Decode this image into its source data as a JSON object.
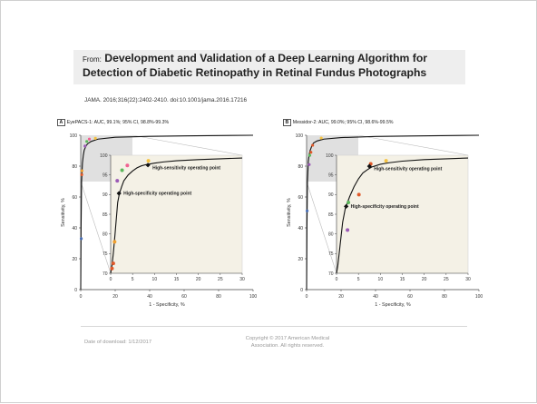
{
  "header": {
    "from_label": "From:",
    "title": "Development and Validation of a Deep Learning Algorithm for Detection of Diabetic Retinopathy in Retinal Fundus Photographs",
    "citation": "JAMA. 2016;316(22):2402-2410. doi:10.1001/jama.2016.17216"
  },
  "footer": {
    "date": "Date of download:  1/12/2017",
    "copyright": "Copyright © 2017 American Medical Association. All rights reserved."
  },
  "colors": {
    "curve": "#111111",
    "inset_bg": "#f4f1e6",
    "zoom_region": "#e0e0e0",
    "axis": "#444444"
  },
  "chart_data": [
    {
      "type": "line",
      "panel": "A",
      "title": "EyePACS-1: AUC, 99.1%; 95% CI, 98.8%-99.3%",
      "xlabel": "1 - Specificity, %",
      "ylabel": "Sensitivity, %",
      "xlim": [
        0,
        100
      ],
      "ylim": [
        0,
        100
      ],
      "x_ticks": [
        "0",
        "20",
        "40",
        "60",
        "80",
        "100"
      ],
      "y_ticks": [
        "0",
        "20",
        "40",
        "60",
        "80",
        "100"
      ],
      "curve": {
        "x": [
          0,
          0.2,
          0.5,
          1,
          1.5,
          2,
          3,
          4,
          6,
          10,
          20,
          40,
          60,
          100
        ],
        "y": [
          0,
          40,
          70,
          82,
          87,
          90.3,
          93,
          94.5,
          96,
          97.5,
          98.7,
          99.3,
          99.6,
          100
        ]
      },
      "points": [
        {
          "x": 0.3,
          "y": 33,
          "color": "#4a6fb5"
        },
        {
          "x": 0.6,
          "y": 74.5,
          "color": "#e05a2b"
        },
        {
          "x": 0.7,
          "y": 77,
          "color": "#f0a030"
        },
        {
          "x": 2.5,
          "y": 93,
          "color": "#9b59b6"
        },
        {
          "x": 3.5,
          "y": 96,
          "color": "#5cb85c"
        },
        {
          "x": 5,
          "y": 97.5,
          "color": "#f06292"
        },
        {
          "x": 8.5,
          "y": 98,
          "color": "#f5c242"
        }
      ],
      "inset": {
        "xlim": [
          0,
          30
        ],
        "ylim": [
          70,
          100
        ],
        "x_ticks": [
          "0",
          "5",
          "10",
          "15",
          "20",
          "25",
          "30"
        ],
        "y_ticks": [
          "70",
          "75",
          "80",
          "85",
          "90",
          "95",
          "100"
        ],
        "curve": {
          "x": [
            0,
            0.3,
            0.6,
            1,
            1.3,
            1.6,
            2,
            2.5,
            3,
            4,
            5,
            6,
            7,
            8,
            10,
            12,
            15,
            20,
            25,
            30
          ],
          "y": [
            70,
            72,
            75,
            80,
            84,
            88,
            90.3,
            92,
            93.5,
            95,
            96,
            96.8,
            97.3,
            97.6,
            98,
            98.3,
            98.6,
            98.9,
            99.1,
            99.3
          ]
        },
        "operating_points": [
          {
            "x": 8.5,
            "y": 97.5,
            "label": "High-sensitivity operating point"
          },
          {
            "x": 1.9,
            "y": 90.3,
            "label": "High-specificity operating point"
          }
        ],
        "points": [
          {
            "x": 0.3,
            "y": 71.2,
            "color": "#e05a2b"
          },
          {
            "x": 0.6,
            "y": 72.5,
            "color": "#e05a2b"
          },
          {
            "x": 0.9,
            "y": 78,
            "color": "#f0a030"
          },
          {
            "x": 1.5,
            "y": 93.5,
            "color": "#9b59b6"
          },
          {
            "x": 2.6,
            "y": 96.2,
            "color": "#5cb85c"
          },
          {
            "x": 3.8,
            "y": 97.4,
            "color": "#f06292"
          },
          {
            "x": 8.6,
            "y": 98.6,
            "color": "#f5c242"
          }
        ]
      }
    },
    {
      "type": "line",
      "panel": "B",
      "title": "Messidor-2: AUC, 99.0%; 95% CI, 98.6%-99.5%",
      "xlabel": "1 - Specificity, %",
      "ylabel": "Sensitivity, %",
      "xlim": [
        0,
        100
      ],
      "ylim": [
        0,
        100
      ],
      "x_ticks": [
        "0",
        "20",
        "40",
        "60",
        "80",
        "100"
      ],
      "y_ticks": [
        "0",
        "20",
        "40",
        "60",
        "80",
        "100"
      ],
      "curve": {
        "x": [
          0,
          0.2,
          0.5,
          1,
          1.5,
          2,
          3,
          4,
          6,
          10,
          20,
          40,
          60,
          100
        ],
        "y": [
          0,
          40,
          70,
          83,
          87.5,
          90,
          93,
          95,
          96.3,
          97.5,
          98.5,
          99.2,
          99.5,
          100
        ]
      },
      "points": [
        {
          "x": 0.3,
          "y": 51,
          "color": "#4a6fb5"
        },
        {
          "x": 1.5,
          "y": 81,
          "color": "#9b59b6"
        },
        {
          "x": 1.8,
          "y": 87,
          "color": "#5cb85c"
        },
        {
          "x": 2.5,
          "y": 89,
          "color": "#e05a2b"
        },
        {
          "x": 3.5,
          "y": 93.5,
          "color": "#e05a2b"
        },
        {
          "x": 8.5,
          "y": 98.2,
          "color": "#f5c242"
        }
      ],
      "inset": {
        "xlim": [
          0,
          30
        ],
        "ylim": [
          70,
          100
        ],
        "x_ticks": [
          "0",
          "5",
          "10",
          "15",
          "20",
          "25",
          "30"
        ],
        "y_ticks": [
          "70",
          "75",
          "80",
          "85",
          "90",
          "95",
          "100"
        ],
        "curve": {
          "x": [
            0,
            0.3,
            0.6,
            1,
            1.4,
            2,
            2.5,
            3,
            4,
            5,
            6,
            7,
            8,
            10,
            12,
            15,
            20,
            25,
            30
          ],
          "y": [
            70,
            72,
            75,
            79,
            83,
            86.5,
            88,
            89.5,
            92,
            94,
            95.5,
            96.3,
            97,
            97.7,
            98.1,
            98.5,
            98.9,
            99.1,
            99.3
          ]
        },
        "operating_points": [
          {
            "x": 7.5,
            "y": 97.2,
            "label": "High-sensitivity operating point"
          },
          {
            "x": 2.2,
            "y": 87,
            "label": "High-specificity operating point"
          }
        ],
        "points": [
          {
            "x": 2.5,
            "y": 81,
            "color": "#9b59b6"
          },
          {
            "x": 2.7,
            "y": 88,
            "color": "#5cb85c"
          },
          {
            "x": 5.1,
            "y": 90,
            "color": "#e05a2b"
          },
          {
            "x": 7.8,
            "y": 97.8,
            "color": "#e05a2b"
          },
          {
            "x": 11.3,
            "y": 98.6,
            "color": "#f5c242"
          }
        ]
      }
    }
  ]
}
